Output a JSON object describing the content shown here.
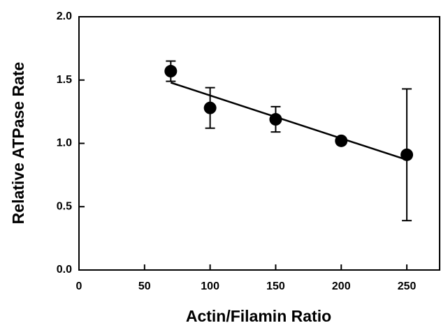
{
  "chart_data": {
    "type": "scatter",
    "xlabel": "Actin/Filamin Ratio",
    "ylabel": "Relative ATPase Rate",
    "x": [
      70,
      100,
      150,
      200,
      250
    ],
    "series": [
      {
        "color": "#000000",
        "values": [
          1.57,
          1.28,
          1.19,
          1.02,
          0.91
        ],
        "errors": [
          0.08,
          0.16,
          0.1,
          0.02,
          0.52
        ]
      }
    ],
    "fit": {
      "x": [
        70,
        250
      ],
      "y": [
        1.48,
        0.87
      ]
    },
    "xlim": [
      0,
      275
    ],
    "ylim": [
      0,
      2.0
    ],
    "xticks": [
      0,
      50,
      100,
      150,
      200,
      250
    ],
    "yticks": [
      {
        "value": 0,
        "label": "0.0"
      },
      {
        "value": 0.5,
        "label": "0.5"
      },
      {
        "value": 1.0,
        "label": "1.0"
      },
      {
        "value": 1.5,
        "label": "1.5"
      },
      {
        "value": 2.0,
        "label": "2.0"
      }
    ]
  }
}
